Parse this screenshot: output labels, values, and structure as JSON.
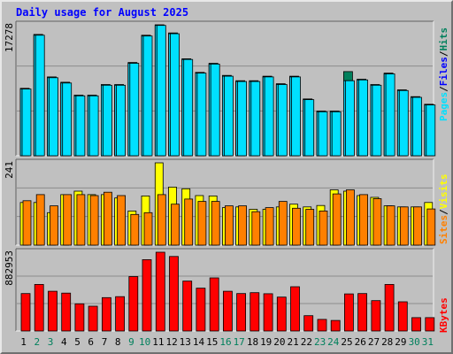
{
  "chart_data": {
    "type": "bar",
    "title": "Daily usage for August 2025",
    "categories": [
      "1",
      "2",
      "3",
      "4",
      "5",
      "6",
      "7",
      "8",
      "9",
      "10",
      "11",
      "12",
      "13",
      "14",
      "15",
      "16",
      "17",
      "18",
      "19",
      "20",
      "21",
      "22",
      "23",
      "24",
      "25",
      "26",
      "27",
      "28",
      "29",
      "30",
      "31"
    ],
    "weekend_days": [
      "2",
      "3",
      "9",
      "10",
      "16",
      "17",
      "23",
      "24",
      "30",
      "31"
    ],
    "colors": {
      "hits": "#00805c",
      "files": "#0000ff",
      "files_bar": "#00c8e8",
      "pages": "#00e0ff",
      "visits": "#ffff00",
      "sites": "#ff8000",
      "kbytes": "#ff0000",
      "title": "#0000ff",
      "weekday_label": "#000000",
      "weekend_label": "#00805c",
      "panel_bg": "#c0c0c0"
    },
    "panels": [
      {
        "id": "hits",
        "max_label": "17278",
        "ymax": 17278,
        "legend": [
          {
            "text": "Pages",
            "color": "#00e0ff"
          },
          {
            "text": "/",
            "color": "#000000"
          },
          {
            "text": "Files",
            "color": "#0000ff"
          },
          {
            "text": "/",
            "color": "#000000"
          },
          {
            "text": "Hits",
            "color": "#00805c"
          }
        ],
        "series": [
          {
            "name": "Hits",
            "values": [
              8900,
              16000,
              10400,
              9700,
              8000,
              8000,
              9400,
              9400,
              12300,
              15900,
              17278,
              16200,
              12800,
              11000,
              12200,
              10600,
              9900,
              9900,
              10500,
              9500,
              10500,
              7500,
              5900,
              5900,
              11100,
              10100,
              9400,
              10900,
              8700,
              7800,
              6800
            ]
          },
          {
            "name": "Files",
            "values": [
              8800,
              15900,
              10300,
              9600,
              7900,
              7900,
              9300,
              9300,
              12200,
              15800,
              17200,
              16100,
              12700,
              10900,
              12100,
              10500,
              9800,
              9800,
              10400,
              9400,
              10400,
              7400,
              5800,
              5800,
              9900,
              10000,
              9300,
              10800,
              8600,
              7700,
              6700
            ]
          },
          {
            "name": "Pages",
            "values": [
              8800,
              15900,
              10300,
              9600,
              7900,
              7900,
              9300,
              9300,
              12200,
              15800,
              17200,
              16100,
              12700,
              10900,
              12100,
              10500,
              9800,
              9800,
              10400,
              9400,
              10400,
              7400,
              5800,
              5800,
              9900,
              10000,
              9300,
              10800,
              8600,
              7700,
              6700
            ]
          }
        ]
      },
      {
        "id": "visits",
        "max_label": "241",
        "ymax": 241,
        "legend": [
          {
            "text": "Sites",
            "color": "#ff8000"
          },
          {
            "text": "/",
            "color": "#000000"
          },
          {
            "text": "Visits",
            "color": "#ffff00"
          }
        ],
        "series": [
          {
            "name": "Visits",
            "values": [
              125,
              125,
              95,
              148,
              158,
              148,
              148,
              138,
              100,
              144,
              241,
              170,
              165,
              145,
              144,
              110,
              112,
              105,
              105,
              112,
              120,
              112,
              116,
              162,
              158,
              145,
              140,
              115,
              112,
              112,
              125
            ]
          },
          {
            "name": "Sites",
            "values": [
              130,
              148,
              115,
              148,
              148,
              145,
              155,
              145,
              90,
              95,
              148,
              120,
              135,
              128,
              128,
              115,
              115,
              98,
              110,
              128,
              108,
              105,
              100,
              150,
              162,
              148,
              136,
              115,
              112,
              112,
              106
            ]
          }
        ]
      },
      {
        "id": "kbytes",
        "max_label": "882953",
        "ymax": 882953,
        "legend": [
          {
            "text": "KBytes",
            "color": "#ff0000"
          }
        ],
        "series": [
          {
            "name": "KBytes",
            "values": [
              420000,
              522000,
              445000,
              425000,
              305000,
              278000,
              374000,
              385000,
              610000,
              800000,
              882953,
              835000,
              560000,
              480000,
              595000,
              445000,
              420000,
              430000,
              418000,
              380000,
              496000,
              172000,
              130000,
              118000,
              416000,
              420000,
              340000,
              522000,
              327000,
              150000,
              150000
            ]
          }
        ]
      }
    ]
  }
}
